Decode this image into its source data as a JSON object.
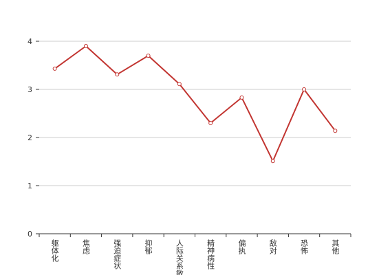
{
  "chart_data": {
    "type": "line",
    "categories": [
      "躯体化",
      "焦虑",
      "强迫症状",
      "抑郁",
      "人际关系敏感",
      "精神病性",
      "偏执",
      "敌对",
      "恐怖",
      "其他"
    ],
    "series": [
      {
        "color": "#c23531",
        "values": [
          3.43,
          3.9,
          3.31,
          3.7,
          3.11,
          2.3,
          2.83,
          1.51,
          3.0,
          2.14
        ]
      }
    ],
    "ylim": [
      0,
      4
    ],
    "yticks": [
      0,
      1,
      2,
      3,
      4
    ],
    "grid": true
  }
}
